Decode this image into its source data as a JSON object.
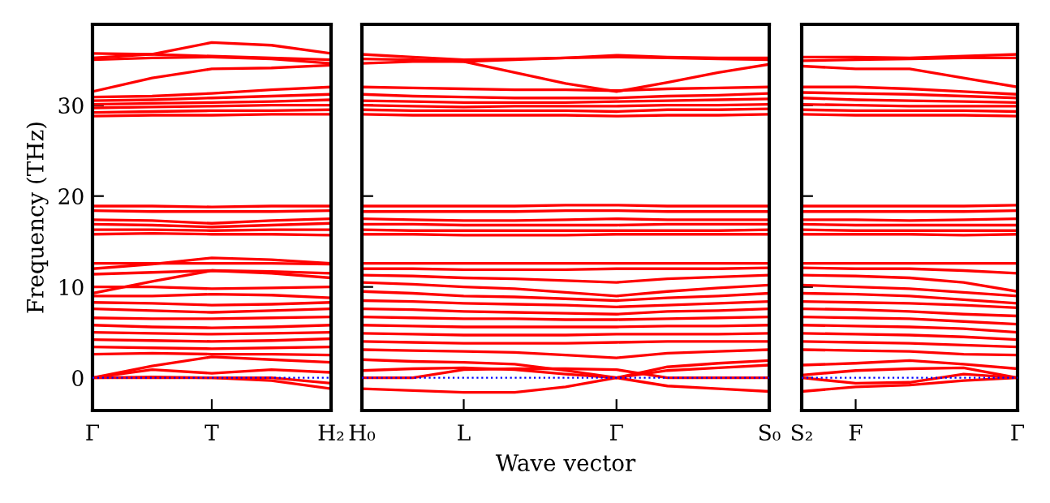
{
  "chart_data": [
    {
      "type": "line",
      "ylabel": "Frequency (THz)",
      "categories": [
        "Γ",
        null,
        "T",
        null,
        "H₂"
      ],
      "ylim": [
        -3.6,
        38.9
      ],
      "yticks": [
        0,
        10,
        20,
        30
      ],
      "marker": "none",
      "line_style": "solid",
      "ref_lines": [
        {
          "axis": "y",
          "value": 0,
          "color": "#0000ff",
          "line_style": "dotted"
        }
      ],
      "series": [
        {
          "color": "#ff0000",
          "values": [
            35.7,
            35.6,
            35.4,
            35.2,
            35.0
          ]
        },
        {
          "color": "#ff0000",
          "values": [
            35.2,
            35.6,
            36.9,
            36.6,
            35.7
          ]
        },
        {
          "color": "#ff0000",
          "values": [
            35.0,
            35.2,
            35.3,
            35.1,
            34.6
          ]
        },
        {
          "color": "#ff0000",
          "values": [
            31.5,
            33.0,
            34.0,
            34.1,
            34.4
          ]
        },
        {
          "color": "#ff0000",
          "values": [
            30.9,
            31.0,
            31.3,
            31.7,
            32.0
          ]
        },
        {
          "color": "#ff0000",
          "values": [
            30.5,
            30.6,
            30.8,
            31.0,
            31.2
          ]
        },
        {
          "color": "#ff0000",
          "values": [
            30.1,
            30.2,
            30.3,
            30.4,
            30.6
          ]
        },
        {
          "color": "#ff0000",
          "values": [
            29.7,
            29.8,
            29.9,
            30.0,
            30.0
          ]
        },
        {
          "color": "#ff0000",
          "values": [
            29.2,
            29.3,
            29.4,
            29.4,
            29.5
          ]
        },
        {
          "color": "#ff0000",
          "values": [
            28.8,
            28.9,
            28.9,
            29.0,
            29.0
          ]
        },
        {
          "color": "#ff0000",
          "values": [
            18.9,
            18.9,
            18.8,
            18.9,
            18.9
          ]
        },
        {
          "color": "#ff0000",
          "values": [
            18.4,
            18.3,
            18.3,
            18.3,
            18.4
          ]
        },
        {
          "color": "#ff0000",
          "values": [
            17.4,
            17.3,
            17.0,
            17.3,
            17.5
          ]
        },
        {
          "color": "#ff0000",
          "values": [
            16.9,
            16.8,
            16.6,
            16.8,
            17.0
          ]
        },
        {
          "color": "#ff0000",
          "values": [
            16.3,
            16.3,
            16.2,
            16.3,
            16.3
          ]
        },
        {
          "color": "#ff0000",
          "values": [
            15.8,
            15.9,
            15.8,
            15.8,
            15.7
          ]
        },
        {
          "color": "#ff0000",
          "values": [
            12.6,
            12.6,
            12.6,
            12.6,
            12.5
          ]
        },
        {
          "color": "#ff0000",
          "values": [
            12.0,
            12.5,
            13.2,
            13.0,
            12.6
          ]
        },
        {
          "color": "#ff0000",
          "values": [
            11.4,
            11.6,
            11.8,
            11.7,
            11.5
          ]
        },
        {
          "color": "#ff0000",
          "values": [
            9.3,
            10.6,
            11.8,
            11.5,
            11.0
          ]
        },
        {
          "color": "#ff0000",
          "values": [
            10.0,
            10.0,
            9.8,
            9.9,
            10.0
          ]
        },
        {
          "color": "#ff0000",
          "values": [
            9.0,
            9.0,
            9.2,
            9.1,
            8.8
          ]
        },
        {
          "color": "#ff0000",
          "values": [
            8.3,
            8.2,
            8.0,
            8.1,
            8.3
          ]
        },
        {
          "color": "#ff0000",
          "values": [
            7.6,
            7.4,
            7.2,
            7.4,
            7.6
          ]
        },
        {
          "color": "#ff0000",
          "values": [
            6.6,
            6.5,
            6.5,
            6.6,
            6.7
          ]
        },
        {
          "color": "#ff0000",
          "values": [
            5.8,
            5.6,
            5.5,
            5.6,
            5.8
          ]
        },
        {
          "color": "#ff0000",
          "values": [
            5.0,
            4.9,
            4.8,
            4.9,
            5.0
          ]
        },
        {
          "color": "#ff0000",
          "values": [
            4.2,
            4.1,
            4.0,
            4.1,
            4.3
          ]
        },
        {
          "color": "#ff0000",
          "values": [
            3.4,
            3.3,
            3.2,
            3.3,
            3.4
          ]
        },
        {
          "color": "#ff0000",
          "values": [
            2.6,
            2.7,
            2.6,
            2.6,
            2.5
          ]
        },
        {
          "color": "#ff0000",
          "values": [
            0.0,
            1.3,
            2.3,
            2.0,
            1.7
          ]
        },
        {
          "color": "#ff0000",
          "values": [
            0.0,
            0.9,
            0.5,
            0.9,
            0.6
          ]
        },
        {
          "color": "#ff0000",
          "values": [
            0.0,
            0.1,
            0.0,
            0.0,
            -0.6
          ]
        },
        {
          "color": "#ff0000",
          "values": [
            0.0,
            0.0,
            0.0,
            -0.3,
            -1.2
          ]
        }
      ]
    },
    {
      "type": "line",
      "xlabel": "Wave vector",
      "categories": [
        "H₀",
        null,
        "L",
        null,
        null,
        "Γ",
        null,
        null,
        "S₀"
      ],
      "ylim": [
        -3.6,
        38.9
      ],
      "yticks": [
        0,
        10,
        20,
        30
      ],
      "tick_labels": "x",
      "marker": "none",
      "line_style": "solid",
      "ref_lines": [
        {
          "axis": "y",
          "value": 0,
          "color": "#0000ff",
          "line_style": "dotted"
        }
      ],
      "series": [
        {
          "color": "#ff0000",
          "values": [
            35.6,
            35.3,
            35.0,
            35.1,
            35.2,
            35.3,
            35.2,
            35.1,
            35.0
          ]
        },
        {
          "color": "#ff0000",
          "values": [
            35.1,
            35.0,
            34.8,
            35.0,
            35.2,
            35.5,
            35.3,
            35.2,
            35.2
          ]
        },
        {
          "color": "#ff0000",
          "values": [
            34.6,
            34.8,
            34.8,
            33.6,
            32.4,
            31.5,
            32.5,
            33.6,
            34.5
          ]
        },
        {
          "color": "#ff0000",
          "values": [
            32.0,
            31.9,
            31.8,
            31.7,
            31.7,
            31.6,
            31.8,
            31.9,
            32.0
          ]
        },
        {
          "color": "#ff0000",
          "values": [
            31.2,
            31.0,
            30.9,
            30.8,
            30.8,
            30.8,
            31.0,
            31.1,
            31.3
          ]
        },
        {
          "color": "#ff0000",
          "values": [
            30.5,
            30.4,
            30.3,
            30.3,
            30.3,
            30.4,
            30.5,
            30.6,
            30.7
          ]
        },
        {
          "color": "#ff0000",
          "values": [
            30.0,
            29.9,
            29.8,
            29.9,
            29.9,
            29.9,
            30.0,
            30.0,
            30.1
          ]
        },
        {
          "color": "#ff0000",
          "values": [
            29.5,
            29.4,
            29.4,
            29.4,
            29.4,
            29.3,
            29.5,
            29.5,
            29.6
          ]
        },
        {
          "color": "#ff0000",
          "values": [
            29.0,
            28.9,
            28.9,
            28.9,
            28.9,
            28.8,
            28.9,
            28.9,
            29.0
          ]
        },
        {
          "color": "#ff0000",
          "values": [
            18.9,
            18.9,
            18.9,
            18.9,
            19.0,
            19.0,
            18.9,
            18.9,
            18.9
          ]
        },
        {
          "color": "#ff0000",
          "values": [
            18.3,
            18.3,
            18.3,
            18.3,
            18.4,
            18.4,
            18.3,
            18.3,
            18.3
          ]
        },
        {
          "color": "#ff0000",
          "values": [
            17.5,
            17.4,
            17.3,
            17.3,
            17.4,
            17.5,
            17.4,
            17.4,
            17.4
          ]
        },
        {
          "color": "#ff0000",
          "values": [
            16.9,
            16.9,
            16.8,
            16.8,
            16.8,
            16.8,
            16.9,
            16.9,
            16.9
          ]
        },
        {
          "color": "#ff0000",
          "values": [
            16.3,
            16.2,
            16.2,
            16.2,
            16.2,
            16.2,
            16.2,
            16.2,
            16.3
          ]
        },
        {
          "color": "#ff0000",
          "values": [
            15.8,
            15.8,
            15.7,
            15.7,
            15.7,
            15.8,
            15.8,
            15.8,
            15.8
          ]
        },
        {
          "color": "#ff0000",
          "values": [
            12.6,
            12.6,
            12.6,
            12.6,
            12.6,
            12.6,
            12.6,
            12.6,
            12.6
          ]
        },
        {
          "color": "#ff0000",
          "values": [
            12.0,
            12.0,
            11.9,
            11.9,
            11.9,
            12.0,
            12.0,
            12.0,
            12.1
          ]
        },
        {
          "color": "#ff0000",
          "values": [
            11.3,
            11.2,
            11.0,
            10.9,
            10.7,
            10.5,
            10.9,
            11.1,
            11.3
          ]
        },
        {
          "color": "#ff0000",
          "values": [
            10.5,
            10.3,
            10.0,
            9.8,
            9.4,
            9.0,
            9.5,
            9.9,
            10.2
          ]
        },
        {
          "color": "#ff0000",
          "values": [
            9.5,
            9.3,
            9.0,
            8.9,
            8.7,
            8.5,
            8.8,
            9.0,
            9.3
          ]
        },
        {
          "color": "#ff0000",
          "values": [
            8.5,
            8.4,
            8.2,
            8.1,
            8.0,
            7.8,
            8.0,
            8.2,
            8.4
          ]
        },
        {
          "color": "#ff0000",
          "values": [
            7.6,
            7.5,
            7.3,
            7.2,
            7.1,
            7.0,
            7.3,
            7.4,
            7.6
          ]
        },
        {
          "color": "#ff0000",
          "values": [
            6.7,
            6.6,
            6.5,
            6.5,
            6.4,
            6.4,
            6.5,
            6.6,
            6.7
          ]
        },
        {
          "color": "#ff0000",
          "values": [
            5.8,
            5.7,
            5.6,
            5.6,
            5.6,
            5.6,
            5.7,
            5.7,
            5.8
          ]
        },
        {
          "color": "#ff0000",
          "values": [
            4.9,
            4.8,
            4.7,
            4.7,
            4.7,
            4.8,
            4.8,
            4.8,
            4.9
          ]
        },
        {
          "color": "#ff0000",
          "values": [
            4.0,
            3.9,
            3.8,
            3.8,
            3.8,
            3.9,
            4.0,
            4.0,
            4.0
          ]
        },
        {
          "color": "#ff0000",
          "values": [
            3.1,
            3.0,
            2.9,
            2.8,
            2.5,
            2.2,
            2.7,
            2.9,
            3.1
          ]
        },
        {
          "color": "#ff0000",
          "values": [
            2.0,
            1.8,
            1.7,
            1.5,
            0.8,
            0.0,
            0.8,
            1.1,
            1.4
          ]
        },
        {
          "color": "#ff0000",
          "values": [
            0.8,
            1.0,
            1.1,
            0.9,
            0.4,
            0.0,
            1.2,
            1.6,
            1.9
          ]
        },
        {
          "color": "#ff0000",
          "values": [
            0.0,
            0.0,
            0.9,
            1.0,
            1.0,
            0.9,
            0.0,
            0.0,
            0.0
          ]
        },
        {
          "color": "#ff0000",
          "values": [
            -1.2,
            -1.4,
            -1.6,
            -1.6,
            -1.0,
            0.0,
            -0.9,
            -1.2,
            -1.5
          ]
        }
      ]
    },
    {
      "type": "line",
      "categories": [
        "S₂",
        "F",
        null,
        null,
        "Γ"
      ],
      "ylim": [
        -3.6,
        38.9
      ],
      "yticks": [
        0,
        10,
        20,
        30
      ],
      "tick_labels": "x",
      "marker": "none",
      "line_style": "solid",
      "ref_lines": [
        {
          "axis": "y",
          "value": 0,
          "color": "#0000ff",
          "line_style": "dotted"
        }
      ],
      "series": [
        {
          "color": "#ff0000",
          "values": [
            35.3,
            35.3,
            35.2,
            35.4,
            35.6
          ]
        },
        {
          "color": "#ff0000",
          "values": [
            34.9,
            35.0,
            35.1,
            35.2,
            35.2
          ]
        },
        {
          "color": "#ff0000",
          "values": [
            34.3,
            34.0,
            34.0,
            33.0,
            32.0
          ]
        },
        {
          "color": "#ff0000",
          "values": [
            32.0,
            32.0,
            31.8,
            31.5,
            31.2
          ]
        },
        {
          "color": "#ff0000",
          "values": [
            31.4,
            31.3,
            31.2,
            31.0,
            30.8
          ]
        },
        {
          "color": "#ff0000",
          "values": [
            30.8,
            30.6,
            30.5,
            30.4,
            30.3
          ]
        },
        {
          "color": "#ff0000",
          "values": [
            30.1,
            30.0,
            29.9,
            29.9,
            29.9
          ]
        },
        {
          "color": "#ff0000",
          "values": [
            29.5,
            29.4,
            29.4,
            29.4,
            29.3
          ]
        },
        {
          "color": "#ff0000",
          "values": [
            29.0,
            28.9,
            28.9,
            28.9,
            28.8
          ]
        },
        {
          "color": "#ff0000",
          "values": [
            18.9,
            18.9,
            18.9,
            18.9,
            19.0
          ]
        },
        {
          "color": "#ff0000",
          "values": [
            18.3,
            18.3,
            18.3,
            18.3,
            18.4
          ]
        },
        {
          "color": "#ff0000",
          "values": [
            17.4,
            17.4,
            17.3,
            17.4,
            17.5
          ]
        },
        {
          "color": "#ff0000",
          "values": [
            16.9,
            16.8,
            16.8,
            16.8,
            16.8
          ]
        },
        {
          "color": "#ff0000",
          "values": [
            16.3,
            16.2,
            16.2,
            16.2,
            16.2
          ]
        },
        {
          "color": "#ff0000",
          "values": [
            15.8,
            15.8,
            15.8,
            15.7,
            15.8
          ]
        },
        {
          "color": "#ff0000",
          "values": [
            12.6,
            12.6,
            12.6,
            12.6,
            12.6
          ]
        },
        {
          "color": "#ff0000",
          "values": [
            12.1,
            12.0,
            12.0,
            11.8,
            11.5
          ]
        },
        {
          "color": "#ff0000",
          "values": [
            11.3,
            11.2,
            11.0,
            10.5,
            9.5
          ]
        },
        {
          "color": "#ff0000",
          "values": [
            10.2,
            10.0,
            9.8,
            9.4,
            9.0
          ]
        },
        {
          "color": "#ff0000",
          "values": [
            9.3,
            9.2,
            9.0,
            8.6,
            8.2
          ]
        },
        {
          "color": "#ff0000",
          "values": [
            8.4,
            8.3,
            8.2,
            8.0,
            7.7
          ]
        },
        {
          "color": "#ff0000",
          "values": [
            7.6,
            7.5,
            7.3,
            7.0,
            6.8
          ]
        },
        {
          "color": "#ff0000",
          "values": [
            6.7,
            6.6,
            6.5,
            6.2,
            5.9
          ]
        },
        {
          "color": "#ff0000",
          "values": [
            5.8,
            5.7,
            5.6,
            5.4,
            5.0
          ]
        },
        {
          "color": "#ff0000",
          "values": [
            4.9,
            4.8,
            4.7,
            4.5,
            4.2
          ]
        },
        {
          "color": "#ff0000",
          "values": [
            4.0,
            3.9,
            3.8,
            3.6,
            3.4
          ]
        },
        {
          "color": "#ff0000",
          "values": [
            3.1,
            3.0,
            2.9,
            2.6,
            2.5
          ]
        },
        {
          "color": "#ff0000",
          "values": [
            1.4,
            1.6,
            1.9,
            1.5,
            1.0
          ]
        },
        {
          "color": "#ff0000",
          "values": [
            0.3,
            0.8,
            1.0,
            1.1,
            0.0
          ]
        },
        {
          "color": "#ff0000",
          "values": [
            0.0,
            -0.6,
            -0.5,
            0.4,
            0.0
          ]
        },
        {
          "color": "#ff0000",
          "values": [
            -1.5,
            -1.0,
            -0.8,
            -0.3,
            0.0
          ]
        }
      ]
    }
  ]
}
